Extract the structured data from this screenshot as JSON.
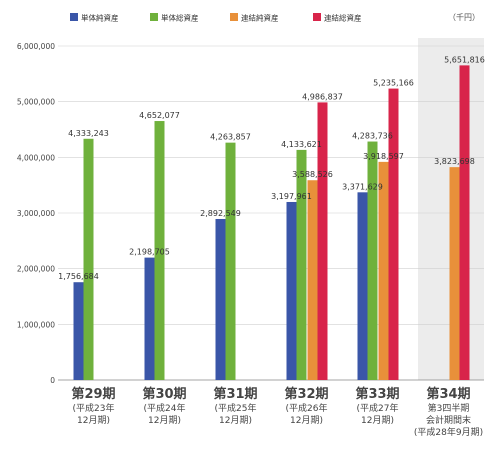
{
  "chart_data": {
    "type": "bar",
    "unit": "（千円）",
    "ylim": [
      0,
      6000000
    ],
    "yticks": [
      "0",
      "1,000,000",
      "2,000,000",
      "3,000,000",
      "4,000,000",
      "5,000,000",
      "6,000,000"
    ],
    "categories": [
      {
        "main": "第29期",
        "sub": [
          "(平成23年",
          "12月期)"
        ]
      },
      {
        "main": "第30期",
        "sub": [
          "(平成24年",
          "12月期)"
        ]
      },
      {
        "main": "第31期",
        "sub": [
          "(平成25年",
          "12月期)"
        ]
      },
      {
        "main": "第32期",
        "sub": [
          "(平成26年",
          "12月期)"
        ]
      },
      {
        "main": "第33期",
        "sub": [
          "(平成27年",
          "12月期)"
        ]
      },
      {
        "main": "第34期",
        "sub": [
          "第3四半期",
          "会計期間末",
          "(平成28年9月期)"
        ]
      }
    ],
    "series": [
      {
        "name": "単体純資産",
        "color": "#3a56a8",
        "values": [
          1756684,
          2198705,
          2892549,
          3197961,
          3371629,
          null
        ],
        "labels": [
          "1,756,684",
          "2,198,705",
          "2,892,549",
          "3,197,961",
          "3,371,629",
          ""
        ]
      },
      {
        "name": "単体総資産",
        "color": "#6fb13c",
        "values": [
          4333243,
          4652077,
          4263857,
          4133621,
          4283736,
          null
        ],
        "labels": [
          "4,333,243",
          "4,652,077",
          "4,263,857",
          "4,133,621",
          "4,283,736",
          ""
        ]
      },
      {
        "name": "連結純資産",
        "color": "#e8903a",
        "values": [
          null,
          null,
          null,
          3588526,
          3918597,
          3823698
        ],
        "labels": [
          "",
          "",
          "",
          "3,588,526",
          "3,918,597",
          "3,823,698"
        ]
      },
      {
        "name": "連結総資産",
        "color": "#d8244a",
        "values": [
          null,
          null,
          null,
          4986837,
          5235166,
          5651816
        ],
        "labels": [
          "",
          "",
          "",
          "4,986,837",
          "5,235,166",
          "5,651,816"
        ]
      }
    ],
    "highlight_category": 5,
    "grid": true,
    "legend": "top"
  }
}
